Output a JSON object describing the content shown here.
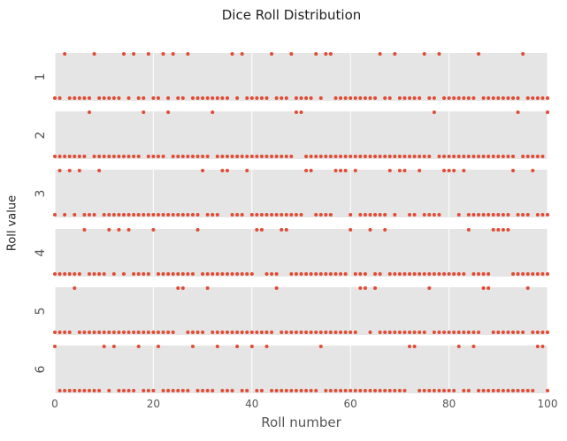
{
  "chart_data": {
    "type": "scatter",
    "title": "Dice Roll Distribution",
    "xlabel": "Roll number",
    "ylabel": "Roll value",
    "xlim": [
      0,
      100
    ],
    "xticks": [
      0,
      20,
      40,
      60,
      80,
      100
    ],
    "panels": [
      "1",
      "2",
      "3",
      "4",
      "5",
      "6"
    ],
    "grid": true,
    "colors": {
      "point": "#E24A33",
      "panel_bg": "#E5E5E5",
      "grid": "#FFFFFF"
    },
    "rolls": [
      6,
      3,
      1,
      3,
      5,
      3,
      4,
      2,
      1,
      3,
      6,
      4,
      6,
      4,
      1,
      4,
      1,
      6,
      2,
      1,
      4,
      6,
      1,
      2,
      1,
      5,
      5,
      1,
      6,
      4,
      3,
      5,
      2,
      6,
      3,
      3,
      1,
      6,
      1,
      3,
      6,
      4,
      4,
      6,
      1,
      5,
      4,
      4,
      1,
      2,
      2,
      3,
      3,
      1,
      6,
      1,
      1,
      3,
      3,
      3,
      4,
      3,
      5,
      5,
      4,
      5,
      1,
      4,
      3,
      1,
      3,
      3,
      6,
      6,
      3,
      1,
      5,
      2,
      1,
      3,
      3,
      3,
      6,
      3,
      4,
      6,
      1,
      5,
      5,
      4,
      4,
      4,
      4,
      3,
      2,
      1,
      5,
      3,
      6,
      6,
      2
    ]
  }
}
